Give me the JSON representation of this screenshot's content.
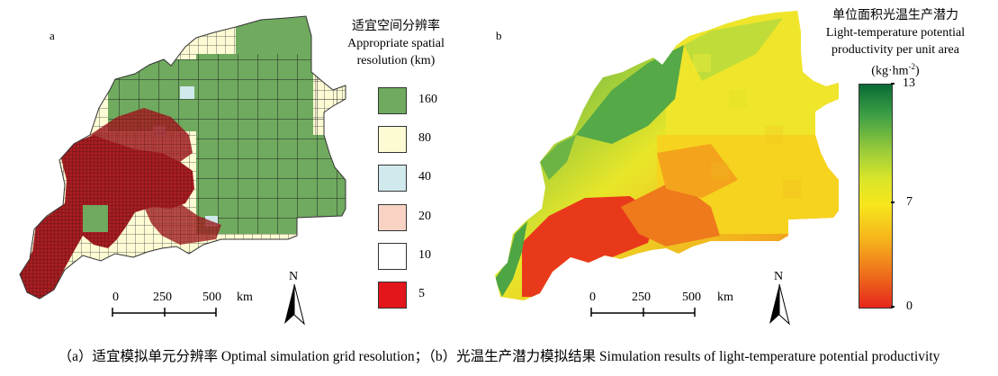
{
  "panel_a": {
    "label": "a",
    "legend_title_cn": "适宜空间分辨率",
    "legend_title_en_1": "Appropriate spatial",
    "legend_title_en_2": "resolution  (km)",
    "legend_items": [
      {
        "label": "160",
        "color": "#6faa5f"
      },
      {
        "label": "80",
        "color": "#fdfbd3"
      },
      {
        "label": "40",
        "color": "#cfe9ec"
      },
      {
        "label": "20",
        "color": "#f8d3c4"
      },
      {
        "label": "10",
        "color": "#ffffff"
      },
      {
        "label": "5",
        "color": "#e3161b"
      }
    ],
    "scale": {
      "t0": "0",
      "t1": "250",
      "t2": "500",
      "unit": "km"
    },
    "north": "N"
  },
  "panel_b": {
    "label": "b",
    "legend_title_cn": "单位面积光温生产潜力",
    "legend_title_en_1": "Light-temperature potential",
    "legend_title_en_2": "productivity per unit area",
    "legend_unit": "(kg·hm",
    "legend_unit_sup": "-2",
    "legend_unit_close": ")",
    "ticks": {
      "max": "13",
      "mid": "7",
      "min": "0"
    },
    "colors": [
      "#0a6b36",
      "#3fa046",
      "#9ccc3a",
      "#d9e52a",
      "#f7e61c",
      "#f6b21b",
      "#ee6a1b",
      "#e5261c"
    ],
    "scale": {
      "t0": "0",
      "t1": "250",
      "t2": "500",
      "unit": "km"
    },
    "north": "N"
  },
  "caption": {
    "a": "（a）适宜模拟单元分辨率 Optimal simulation grid resolution；",
    "b": "（b）光温生产潜力模拟结果 Simulation results of light-temperature potential productivity"
  }
}
